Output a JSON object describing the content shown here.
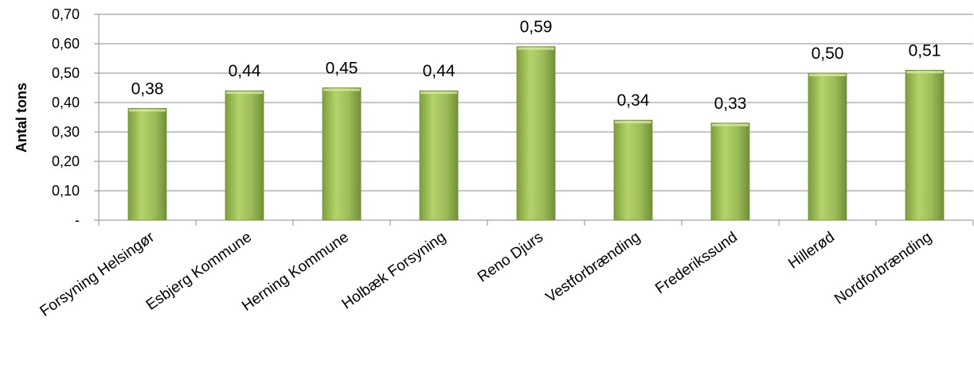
{
  "chart_data": {
    "type": "bar",
    "title": "",
    "xlabel": "",
    "ylabel": "Antal tons",
    "categories": [
      "Forsyning Helsingør",
      "Esbjerg Kommune",
      "Herning Kommune",
      "Holbæk Forsyning",
      "Reno Djurs",
      "Vestforbrænding",
      "Frederikssund",
      "Hillerød",
      "Nordforbrænding"
    ],
    "values": [
      0.38,
      0.44,
      0.45,
      0.44,
      0.59,
      0.34,
      0.33,
      0.5,
      0.51
    ],
    "data_labels": [
      "0,38",
      "0,44",
      "0,45",
      "0,44",
      "0,59",
      "0,34",
      "0,33",
      "0,50",
      "0,51"
    ],
    "ylim": [
      0,
      0.7
    ],
    "yticks": [
      0,
      0.1,
      0.2,
      0.3,
      0.4,
      0.5,
      0.6,
      0.7
    ],
    "ytick_labels": [
      "-",
      "0,10",
      "0,20",
      "0,30",
      "0,40",
      "0,50",
      "0,60",
      "0,70"
    ],
    "grid": true,
    "legend": "none",
    "colors": {
      "bar_light": "#b4d36a",
      "bar_mid": "#9bbb59",
      "bar_dark": "#6f8f34",
      "grid": "#8c8c8c",
      "axis": "#8c8c8c"
    }
  }
}
